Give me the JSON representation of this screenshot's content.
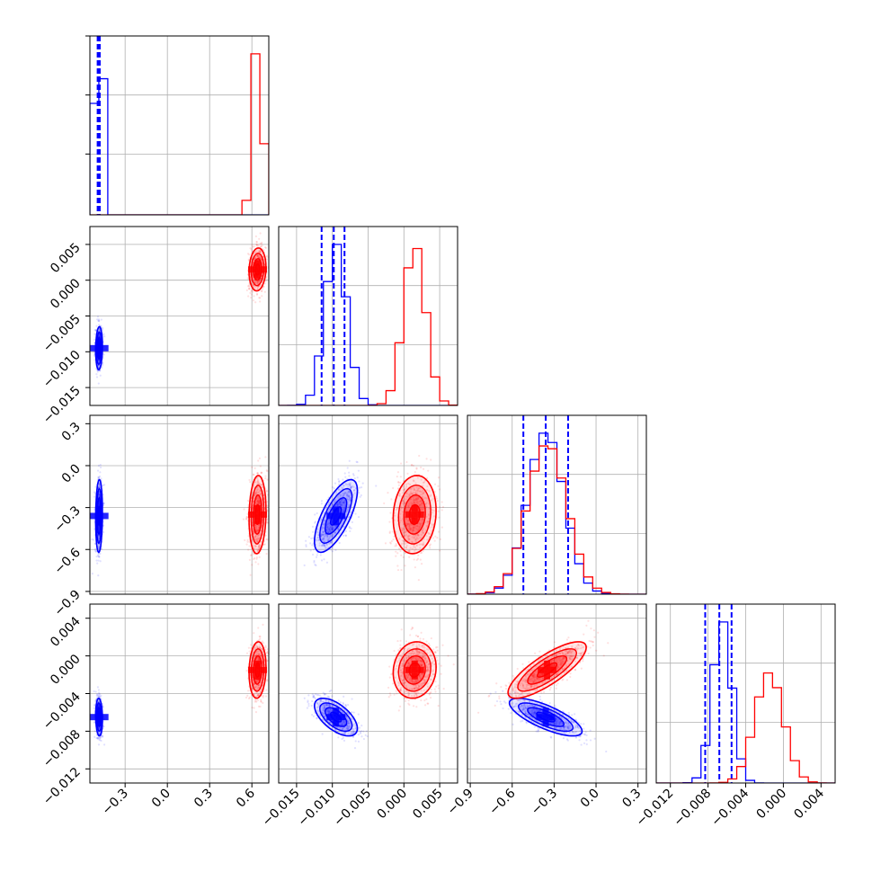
{
  "chart_data": {
    "type": "corner",
    "grid": true,
    "series_colors": {
      "blue": "#0000ff",
      "red": "#ff0000"
    },
    "parameters": [
      {
        "range": [
          -0.55,
          0.72
        ],
        "ticks": [
          -0.3,
          0.0,
          0.3,
          0.6
        ],
        "tick_labels": [
          "−0.3",
          "0.0",
          "0.3",
          "0.6"
        ]
      },
      {
        "range": [
          -0.0175,
          0.0075
        ],
        "ticks": [
          -0.015,
          -0.01,
          -0.005,
          0.0,
          0.005
        ],
        "tick_labels": [
          "−0.015",
          "−0.010",
          "−0.005",
          "0.000",
          "0.005"
        ]
      },
      {
        "range": [
          -0.92,
          0.36
        ],
        "ticks": [
          -0.9,
          -0.6,
          -0.3,
          0.0,
          0.3
        ],
        "tick_labels": [
          "−0.9",
          "−0.6",
          "−0.3",
          "0.0",
          "0.3"
        ]
      },
      {
        "range": [
          -0.0135,
          0.0055
        ],
        "ticks": [
          -0.012,
          -0.008,
          -0.004,
          0.0,
          0.004
        ],
        "tick_labels": [
          "−0.012",
          "−0.008",
          "−0.004",
          "0.000",
          "0.004"
        ]
      }
    ],
    "series": [
      {
        "color": "blue",
        "mean": [
          -0.485,
          -0.0095,
          -0.36,
          -0.0065
        ],
        "sd": [
          0.012,
          0.0015,
          0.13,
          0.001
        ],
        "quantiles": [
          [
            -0.495,
            -0.49,
            -0.48
          ],
          [
            -0.0115,
            -0.0098,
            -0.0083
          ],
          [
            -0.52,
            -0.36,
            -0.2
          ],
          [
            -0.0083,
            -0.0068,
            -0.0055
          ]
        ],
        "corr": [
          [
            1,
            0.1,
            0.1,
            -0.1
          ],
          [
            0.1,
            1,
            0.7,
            -0.6
          ],
          [
            0.1,
            0.7,
            1,
            -0.75
          ],
          [
            -0.1,
            -0.6,
            -0.75,
            1
          ]
        ]
      },
      {
        "color": "red",
        "mean": [
          0.64,
          0.0015,
          -0.35,
          -0.0015
        ],
        "sd": [
          0.03,
          0.0015,
          0.14,
          0.0015
        ],
        "quantiles": [],
        "corr": [
          [
            1,
            0.1,
            0.1,
            0.1
          ],
          [
            0.1,
            1,
            0.1,
            0.1
          ],
          [
            0.1,
            0.1,
            1,
            0.8
          ],
          [
            0.1,
            0.1,
            0.8,
            1
          ]
        ]
      }
    ]
  }
}
